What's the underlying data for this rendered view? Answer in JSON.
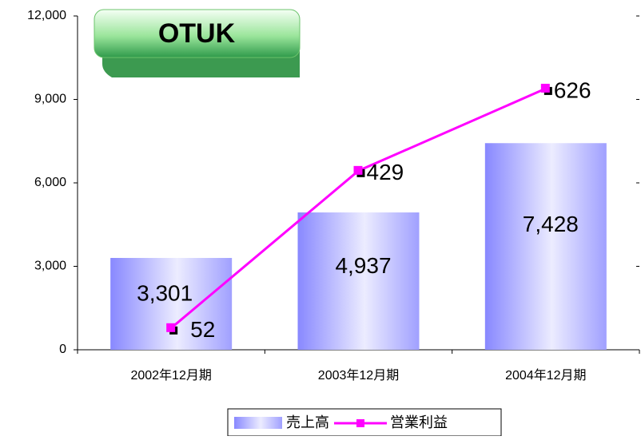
{
  "chart_data": {
    "type": "bar",
    "title": "OTUK",
    "categories": [
      "2002年12月期",
      "2003年12月期",
      "2004年12月期"
    ],
    "series": [
      {
        "name": "売上高",
        "type": "bar",
        "color": "#8888ff",
        "values": [
          3301,
          4937,
          7428
        ],
        "value_labels": [
          "3,301",
          "4,937",
          "7,428"
        ]
      },
      {
        "name": "営業利益",
        "type": "line",
        "axis": "y2",
        "color": "#ff00ff",
        "values": [
          52,
          429,
          626
        ]
      }
    ],
    "ylim": [
      0,
      12000
    ],
    "yticks": [
      0,
      {
        "value": 3000,
        "label": "3,000"
      },
      {
        "value": 6000,
        "label": "6,000"
      },
      {
        "value": 9000,
        "label": "9,000"
      },
      {
        "value": 12000,
        "label": "12,000"
      }
    ],
    "y2lim": [
      0,
      800
    ],
    "y2ticks": [
      0,
      200,
      400,
      600,
      800
    ],
    "legend": "bottom"
  }
}
